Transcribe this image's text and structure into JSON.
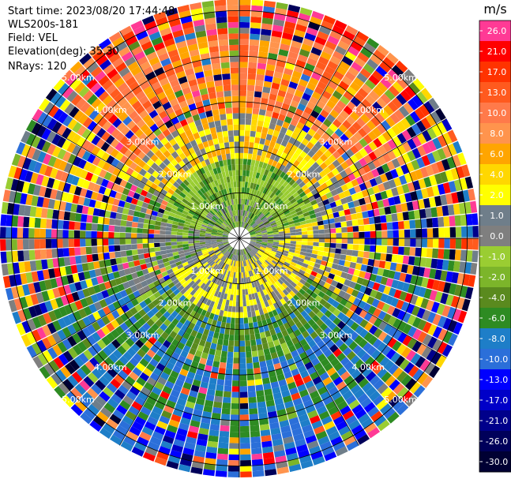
{
  "info": {
    "start_time": "Start time: 2023/08/20 17:44:48",
    "station": "WLS200s-181",
    "field": "Field: VEL",
    "elevation": "Elevation(deg): 35.30",
    "nrays": "NRays: 120"
  },
  "chart_data": {
    "type": "ppi",
    "field": "VEL",
    "units": "m/s",
    "n_rays": 120,
    "elevation_deg": 35.3,
    "max_range_km": 5.25,
    "range_ring_labels": [
      {
        "range_km": 1,
        "text": "1.00km"
      },
      {
        "range_km": 2,
        "text": "2.00km"
      },
      {
        "range_km": 3,
        "text": "3.00km"
      },
      {
        "range_km": 4,
        "text": "4.00km"
      },
      {
        "range_km": 5,
        "text": "5.00km"
      }
    ],
    "azimuth_spokes_deg": [
      0,
      30,
      60,
      90,
      120,
      150,
      180,
      210,
      240,
      270,
      300,
      330
    ],
    "colorbar": {
      "title": "m/s",
      "bins": [
        {
          "label": "26.0",
          "color": "#ff3a95"
        },
        {
          "label": "21.0",
          "color": "#ff0000"
        },
        {
          "label": "17.0",
          "color": "#ff3300"
        },
        {
          "label": "13.0",
          "color": "#ff5a1e"
        },
        {
          "label": "10.0",
          "color": "#ff7a4a"
        },
        {
          "label": "8.0",
          "color": "#ff944d"
        },
        {
          "label": "6.0",
          "color": "#ffa500"
        },
        {
          "label": "4.0",
          "color": "#ffd700"
        },
        {
          "label": "2.0",
          "color": "#ffff00"
        },
        {
          "label": "1.0",
          "color": "#6f7e8a"
        },
        {
          "label": "0.0",
          "color": "#7f7f7f"
        },
        {
          "label": "-1.0",
          "color": "#9acd32"
        },
        {
          "label": "-2.0",
          "color": "#7cb52a"
        },
        {
          "label": "-4.0",
          "color": "#5a8a1e"
        },
        {
          "label": "-6.0",
          "color": "#2e8b22"
        },
        {
          "label": "-8.0",
          "color": "#1e7ec8"
        },
        {
          "label": "-10.0",
          "color": "#2b6fd9"
        },
        {
          "label": "-13.0",
          "color": "#0000ff"
        },
        {
          "label": "-17.0",
          "color": "#0000c8"
        },
        {
          "label": "-21.0",
          "color": "#00008b"
        },
        {
          "label": "-26.0",
          "color": "#00005a"
        },
        {
          "label": "-30.0",
          "color": "#000033"
        }
      ]
    },
    "radial_structure": [
      {
        "range_km": [
          0.0,
          0.8
        ],
        "pattern": "northern half greens, southern half grays with yellow band"
      },
      {
        "range_km": [
          0.8,
          1.6
        ],
        "pattern": "north green/light-green, south-east yellow crescent, gray center"
      },
      {
        "range_km": [
          1.6,
          2.6
        ],
        "pattern": "north yellow/orange arc, south green/blue arc, east-west gray"
      },
      {
        "range_km": [
          2.6,
          4.5
        ],
        "pattern": "north orange/salmon, south blue/green, noisy mixed east-west"
      },
      {
        "range_km": [
          4.5,
          5.25
        ],
        "pattern": "noisy mixed colors all around"
      }
    ]
  }
}
